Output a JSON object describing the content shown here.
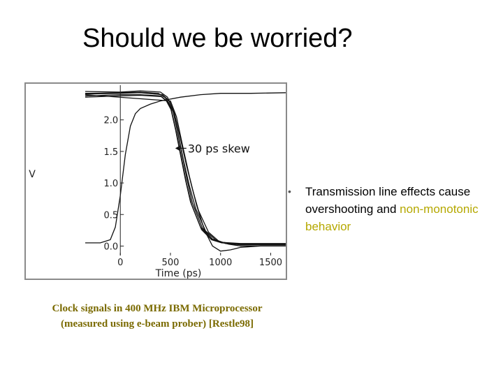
{
  "slide": {
    "title": "Should we be worried?",
    "caption_line1": "Clock signals in 400 MHz IBM Microprocessor",
    "caption_line2": "(measured using e-beam prober) [Restle98]",
    "bullet_part1": "Transmission line effects cause overshooting and ",
    "bullet_highlight": "non-monotonic behavior",
    "colors": {
      "caption": "#7a6a00",
      "highlight": "#b5a800"
    }
  },
  "chart_data": {
    "type": "line",
    "xlabel": "Time (ps)",
    "ylabel": "V",
    "x_ticks": [
      "0",
      "500",
      "1000",
      "1500"
    ],
    "y_ticks": [
      "0.0",
      "0.5",
      "1.0",
      "1.5",
      "2.0"
    ],
    "xlim": [
      -350,
      1650
    ],
    "ylim": [
      -0.15,
      2.55
    ],
    "annotation": "30 ps skew",
    "series": [
      {
        "x": [
          -350,
          0,
          200,
          380,
          450,
          500,
          550,
          600,
          650,
          700,
          800,
          900,
          1000,
          1200,
          1500,
          1650
        ],
        "y": [
          2.42,
          2.43,
          2.44,
          2.42,
          2.35,
          2.2,
          1.85,
          1.45,
          1.05,
          0.7,
          0.3,
          0.12,
          0.06,
          0.04,
          0.04,
          0.04
        ]
      },
      {
        "x": [
          -350,
          0,
          200,
          400,
          460,
          510,
          560,
          610,
          660,
          710,
          810,
          910,
          1010,
          1200,
          1500,
          1650
        ],
        "y": [
          2.38,
          2.4,
          2.4,
          2.38,
          2.3,
          2.15,
          1.8,
          1.4,
          1.0,
          0.66,
          0.26,
          0.1,
          0.05,
          0.03,
          0.03,
          0.03
        ]
      },
      {
        "x": [
          -350,
          0,
          200,
          400,
          470,
          520,
          570,
          620,
          670,
          720,
          820,
          920,
          1020,
          1200,
          1500,
          1650
        ],
        "y": [
          2.45,
          2.44,
          2.46,
          2.44,
          2.36,
          2.18,
          1.82,
          1.42,
          1.02,
          0.68,
          0.28,
          0.11,
          0.06,
          0.02,
          0.02,
          0.02
        ]
      },
      {
        "x": [
          -350,
          0,
          200,
          410,
          480,
          530,
          580,
          630,
          690,
          750,
          850,
          950,
          1050,
          1200,
          1500,
          1650
        ],
        "y": [
          2.36,
          2.38,
          2.39,
          2.37,
          2.28,
          2.12,
          1.75,
          1.36,
          0.95,
          0.6,
          0.24,
          0.1,
          0.04,
          0.02,
          0.02,
          0.02
        ]
      },
      {
        "x": [
          -350,
          0,
          200,
          420,
          490,
          540,
          600,
          660,
          720,
          780,
          880,
          980,
          1080,
          1200,
          1500,
          1650
        ],
        "y": [
          2.41,
          2.42,
          2.43,
          2.4,
          2.3,
          2.1,
          1.7,
          1.28,
          0.9,
          0.56,
          0.22,
          0.08,
          0.03,
          0.0,
          0.0,
          0.0
        ]
      },
      {
        "x": [
          -350,
          -200,
          -100,
          -50,
          0,
          50,
          100,
          150,
          200,
          300,
          400,
          600,
          800,
          1000,
          1300,
          1650
        ],
        "y": [
          0.05,
          0.05,
          0.1,
          0.3,
          0.8,
          1.45,
          1.9,
          2.1,
          2.18,
          2.25,
          2.3,
          2.36,
          2.4,
          2.42,
          2.42,
          2.43
        ]
      },
      {
        "x": [
          -350,
          500,
          560,
          620,
          690,
          760,
          840,
          920,
          1000,
          1100,
          1200,
          1400,
          1650
        ],
        "y": [
          2.4,
          2.3,
          2.05,
          1.6,
          1.1,
          0.65,
          0.25,
          0.0,
          -0.08,
          -0.06,
          -0.02,
          0.0,
          0.0
        ]
      }
    ]
  }
}
